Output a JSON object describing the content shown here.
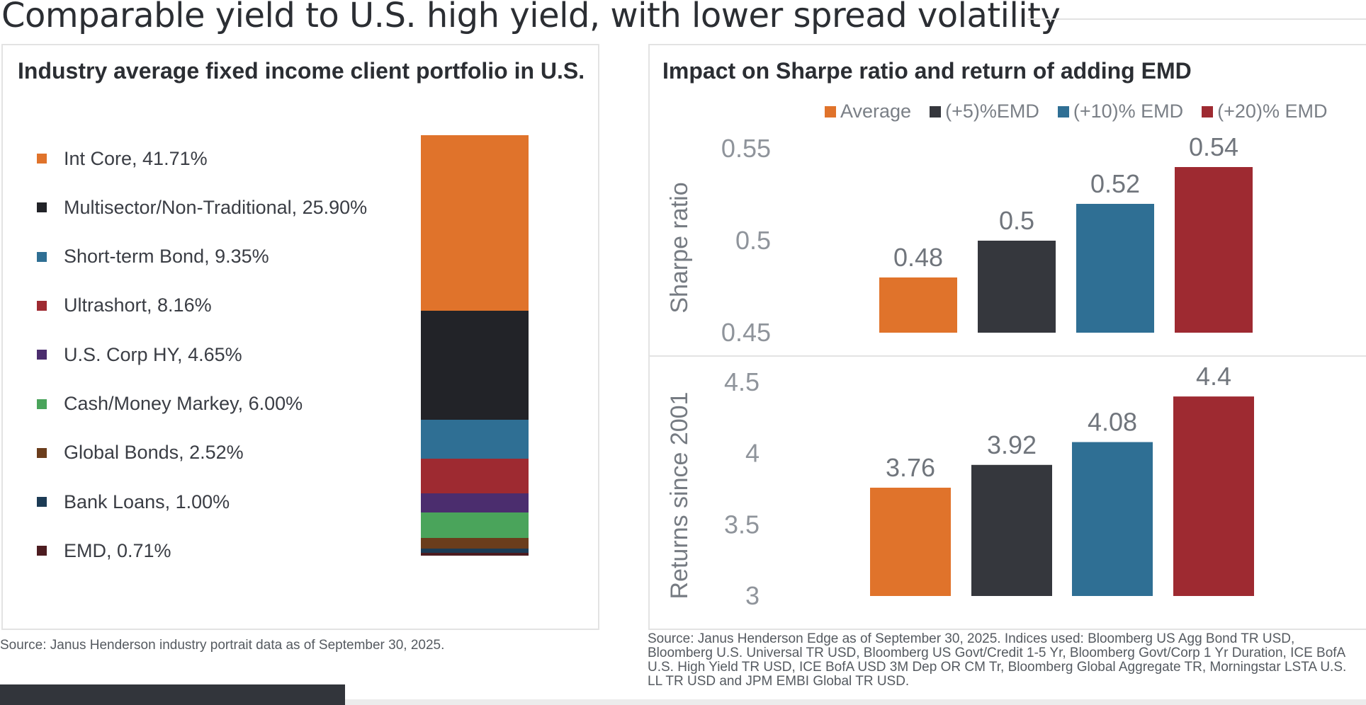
{
  "title": "Comparable yield to U.S. high yield, with lower spread volatility",
  "left": {
    "title": "Industry average fixed income client portfolio in U.S.",
    "source": "Source: Janus Henderson industry portrait data as of September 30, 2025."
  },
  "right": {
    "title": "Impact on Sharpe ratio and return of adding EMD",
    "source": "Source: Janus Henderson Edge as of September 30, 2025. Indices used: Bloomberg US Agg Bond TR USD, Bloomberg U.S. Universal TR USD, Bloomberg US Govt/Credit 1-5 Yr, Bloomberg Govt/Corp 1 Yr Duration, ICE BofA U.S. High Yield TR USD, ICE BofA USD 3M Dep OR CM Tr, Bloomberg Global Aggregate TR, Morningstar LSTA U.S. LL TR USD and JPM EMBI Global TR USD."
  },
  "chart_data": [
    {
      "type": "bar",
      "subtype": "stacked",
      "title": "Industry average fixed income client portfolio in U.S.",
      "legend_position": "left",
      "series": [
        {
          "name": "Int Core",
          "label": "Int Core, 41.71%",
          "value": 41.71,
          "color": "#e0732b"
        },
        {
          "name": "Multisector/Non-Traditional",
          "label": "Multisector/Non-Traditional, 25.90%",
          "value": 25.9,
          "color": "#222328"
        },
        {
          "name": "Short-term Bond",
          "label": "Short-term Bond, 9.35%",
          "value": 9.35,
          "color": "#2f6f94"
        },
        {
          "name": "Ultrashort",
          "label": "Ultrashort, 8.16%",
          "value": 8.16,
          "color": "#9e2a31"
        },
        {
          "name": "U.S. Corp HY",
          "label": "U.S. Corp HY, 4.65%",
          "value": 4.65,
          "color": "#4b2d6e"
        },
        {
          "name": "Cash/Money Markey",
          "label": "Cash/Money Markey, 6.00%",
          "value": 6.0,
          "color": "#4aa45b"
        },
        {
          "name": "Global Bonds",
          "label": "Global Bonds, 2.52%",
          "value": 2.52,
          "color": "#6b3d1c"
        },
        {
          "name": "Bank Loans",
          "label": "Bank Loans, 1.00%",
          "value": 1.0,
          "color": "#1c3b55"
        },
        {
          "name": "EMD",
          "label": "EMD, 0.71%",
          "value": 0.71,
          "color": "#4d1c20"
        }
      ]
    },
    {
      "type": "bar",
      "title": "Impact on Sharpe ratio and return of adding EMD",
      "legend_position": "top",
      "legend": [
        {
          "name": "Average",
          "color": "#e0732b"
        },
        {
          "name": "(+5)%EMD",
          "color": "#35373d"
        },
        {
          "name": "(+10)% EMD",
          "color": "#2f6f94"
        },
        {
          "name": "(+20)% EMD",
          "color": "#9e2a31"
        }
      ],
      "panels": [
        {
          "ylabel": "Sharpe ratio",
          "ylim": [
            0.45,
            0.55
          ],
          "yticks": [
            "0.55",
            "0.5",
            "0.45"
          ],
          "values": [
            0.48,
            0.5,
            0.52,
            0.54
          ],
          "labels": [
            "0.48",
            "0.5",
            "0.52",
            "0.54"
          ]
        },
        {
          "ylabel": "Returns since 2001",
          "ylim": [
            3,
            4.5
          ],
          "yticks": [
            "4.5",
            "4",
            "3.5",
            "3"
          ],
          "values": [
            3.76,
            3.92,
            4.08,
            4.4
          ],
          "labels": [
            "3.76",
            "3.92",
            "4.08",
            "4.4"
          ]
        }
      ]
    }
  ]
}
